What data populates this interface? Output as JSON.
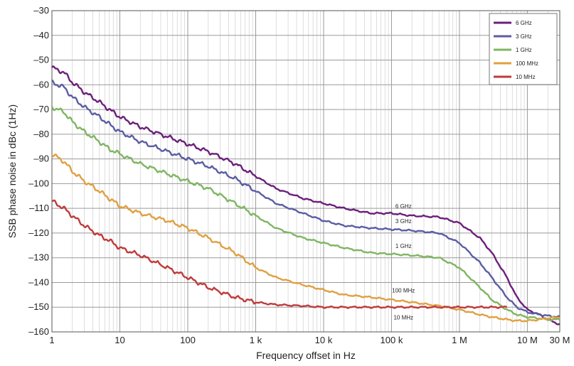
{
  "chart_data": {
    "type": "line",
    "xlabel": "Frequency offset in Hz",
    "ylabel": "SSB phase noise in dBc (1Hz)",
    "xscale": "log",
    "xlim": [
      1,
      30000000
    ],
    "ylim": [
      -160,
      -30
    ],
    "grid": true,
    "legend_position": "top-right",
    "x_ticks": [
      {
        "value": 1,
        "label": "1"
      },
      {
        "value": 10,
        "label": "10"
      },
      {
        "value": 100,
        "label": "100"
      },
      {
        "value": 1000,
        "label": "1 k"
      },
      {
        "value": 10000,
        "label": "10 k"
      },
      {
        "value": 100000,
        "label": "100 k"
      },
      {
        "value": 1000000,
        "label": "1 M"
      },
      {
        "value": 10000000,
        "label": "10 M"
      },
      {
        "value": 30000000,
        "label": "30 M"
      }
    ],
    "y_ticks": [
      {
        "value": -30,
        "label": "–30"
      },
      {
        "value": -40,
        "label": "–40"
      },
      {
        "value": -50,
        "label": "–50"
      },
      {
        "value": -60,
        "label": "–60"
      },
      {
        "value": -70,
        "label": "–70"
      },
      {
        "value": -80,
        "label": "–80"
      },
      {
        "value": -90,
        "label": "–90"
      },
      {
        "value": -100,
        "label": "–100"
      },
      {
        "value": -110,
        "label": "–110"
      },
      {
        "value": -120,
        "label": "–120"
      },
      {
        "value": -130,
        "label": "–130"
      },
      {
        "value": -140,
        "label": "–140"
      },
      {
        "value": -150,
        "label": "–150"
      },
      {
        "value": -160,
        "label": "–160"
      }
    ],
    "series": [
      {
        "name": "6 GHz",
        "color": "#6b1f7a",
        "x": [
          1,
          1.5,
          2,
          3,
          5,
          7,
          10,
          20,
          50,
          100,
          200,
          500,
          1000,
          2000,
          5000,
          10000,
          20000,
          50000,
          100000,
          200000,
          500000,
          1000000,
          2000000,
          3000000,
          5000000,
          7000000,
          10000000,
          15000000,
          20000000,
          30000000
        ],
        "y": [
          -53,
          -55,
          -59,
          -63,
          -67,
          -70,
          -73,
          -77,
          -81,
          -84,
          -87,
          -92,
          -97,
          -102,
          -106,
          -108,
          -110,
          -112,
          -112,
          -113,
          -113.5,
          -116,
          -122,
          -128,
          -138,
          -146,
          -151,
          -153,
          -155,
          -157
        ],
        "label": "6 GHz",
        "label_x": 150000,
        "label_y": -110
      },
      {
        "name": "3 GHz",
        "color": "#5a5da3",
        "x": [
          1,
          1.5,
          2,
          3,
          5,
          7,
          10,
          20,
          50,
          100,
          200,
          500,
          1000,
          2000,
          5000,
          10000,
          20000,
          50000,
          100000,
          200000,
          500000,
          1000000,
          2000000,
          3000000,
          5000000,
          7000000,
          10000000,
          15000000,
          20000000,
          30000000
        ],
        "y": [
          -59,
          -61,
          -65,
          -69,
          -73,
          -76,
          -79,
          -83,
          -87,
          -90,
          -93,
          -98,
          -103,
          -108,
          -112,
          -115,
          -117,
          -118,
          -118.5,
          -119,
          -120,
          -124,
          -132,
          -138,
          -146,
          -150,
          -152,
          -153,
          -153.5,
          -154
        ],
        "label": "3 GHz",
        "label_x": 150000,
        "label_y": -116
      },
      {
        "name": "1 GHz",
        "color": "#7fb561",
        "x": [
          1,
          1.5,
          2,
          3,
          5,
          7,
          10,
          20,
          50,
          100,
          200,
          500,
          1000,
          2000,
          5000,
          10000,
          20000,
          50000,
          100000,
          200000,
          500000,
          1000000,
          2000000,
          3000000,
          5000000,
          7000000,
          10000000,
          15000000,
          20000000,
          30000000
        ],
        "y": [
          -69,
          -71,
          -75,
          -79,
          -83,
          -86,
          -88,
          -92,
          -96,
          -99,
          -102,
          -108,
          -113,
          -118,
          -122,
          -124,
          -126,
          -128,
          -128.5,
          -129,
          -130,
          -134,
          -142,
          -147,
          -151,
          -153,
          -154,
          -154.5,
          -155,
          -155
        ],
        "label": "1 GHz",
        "label_x": 150000,
        "label_y": -126
      },
      {
        "name": "100 MHz",
        "color": "#e0a040",
        "x": [
          1,
          1.5,
          2,
          3,
          5,
          7,
          10,
          20,
          50,
          100,
          200,
          500,
          1000,
          2000,
          5000,
          10000,
          20000,
          50000,
          100000,
          200000,
          500000,
          1000000,
          2000000,
          3000000,
          5000000,
          7000000,
          10000000,
          15000000,
          20000000,
          30000000
        ],
        "y": [
          -88,
          -91,
          -95,
          -99,
          -103,
          -106,
          -109,
          -112,
          -115,
          -118,
          -122,
          -128,
          -134,
          -138,
          -141,
          -143,
          -145,
          -146,
          -147,
          -148,
          -149.5,
          -151,
          -153,
          -154,
          -155,
          -155.5,
          -155.5,
          -155,
          -154.5,
          -154
        ],
        "label": "100 MHz",
        "label_x": 150000,
        "label_y": -144
      },
      {
        "name": "10 MHz",
        "color": "#bf3a3a",
        "x": [
          1,
          1.5,
          2,
          3,
          5,
          7,
          10,
          20,
          50,
          100,
          200,
          500,
          1000,
          2000,
          5000,
          10000,
          20000,
          50000,
          100000,
          200000,
          500000,
          1000000,
          2000000,
          3000000,
          5000000
        ],
        "y": [
          -107,
          -110,
          -113,
          -117,
          -121,
          -123,
          -126,
          -129,
          -134,
          -138,
          -142,
          -146,
          -148,
          -149,
          -149.5,
          -150,
          -150,
          -150,
          -150,
          -150,
          -150,
          -150,
          -150,
          -150,
          -150
        ],
        "label": "10 MHz",
        "label_x": 150000,
        "label_y": -155
      }
    ]
  }
}
